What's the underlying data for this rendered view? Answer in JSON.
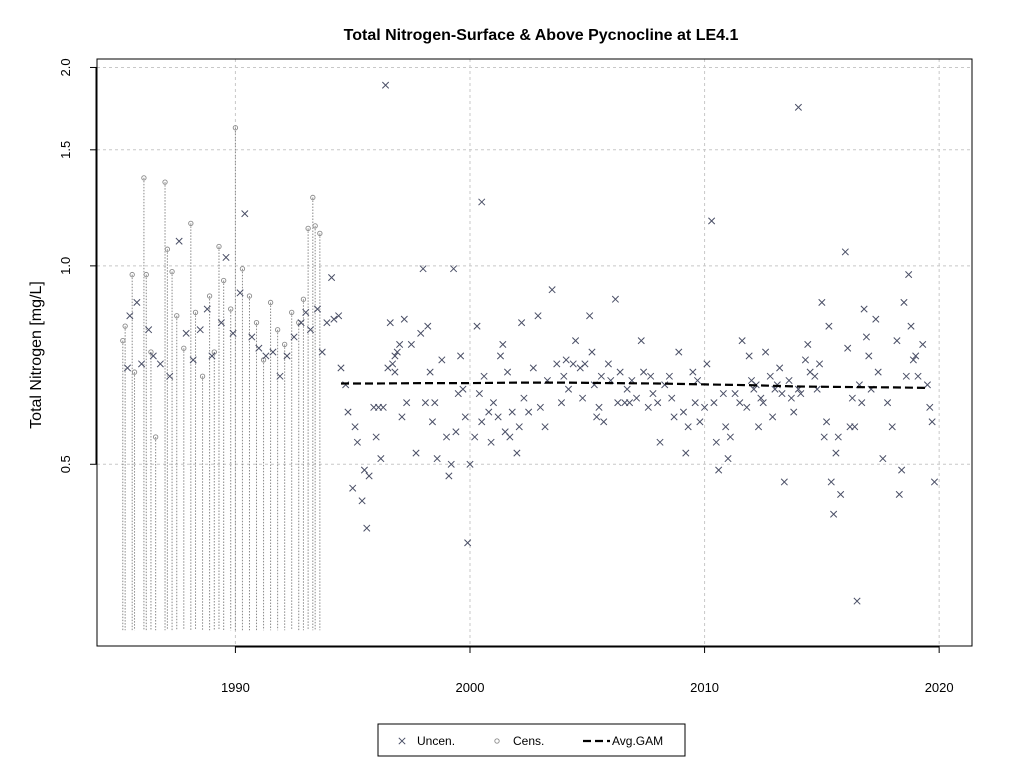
{
  "chart_data": {
    "type": "scatter",
    "title": "Total Nitrogen-Surface & Above Pycnocline at LE4.1",
    "xlabel": "",
    "ylabel": "Total Nitrogen [mg/L]",
    "y_scale": "log",
    "xlim": [
      1984.1,
      2021.4
    ],
    "ylim": [
      0.265,
      2.06
    ],
    "x_ticks": [
      1990,
      2000,
      2010,
      2020
    ],
    "y_ticks": [
      0.5,
      1.0,
      1.5,
      2.0
    ],
    "x_tick_labels": [
      "1990",
      "2000",
      "2010",
      "2020"
    ],
    "y_tick_labels": [
      "0.5",
      "1.0",
      "1.5",
      "2.0"
    ],
    "grid": true,
    "legend_position": "bottom",
    "legend": [
      {
        "label": "Uncen.",
        "symbol": "x"
      },
      {
        "label": "Cens.",
        "symbol": "circle"
      },
      {
        "label": "Avg.GAM",
        "symbol": "dashed-line"
      }
    ],
    "colors": {
      "uncensored": "#4a4f66",
      "censored": "#8a8a8a",
      "gam": "#000000",
      "grid": "#c8c8c8"
    },
    "censored_lower": 0.28,
    "series": [
      {
        "name": "Cens.",
        "points": [
          [
            1985.2,
            0.77
          ],
          [
            1985.3,
            0.81
          ],
          [
            1985.6,
            0.97
          ],
          [
            1985.7,
            0.69
          ],
          [
            1986.1,
            1.36
          ],
          [
            1986.2,
            0.97
          ],
          [
            1986.4,
            0.74
          ],
          [
            1986.6,
            0.55
          ],
          [
            1987.0,
            1.34
          ],
          [
            1987.1,
            1.06
          ],
          [
            1987.3,
            0.98
          ],
          [
            1987.5,
            0.84
          ],
          [
            1987.8,
            0.75
          ],
          [
            1988.1,
            1.16
          ],
          [
            1988.3,
            0.85
          ],
          [
            1988.6,
            0.68
          ],
          [
            1988.9,
            0.9
          ],
          [
            1989.1,
            0.74
          ],
          [
            1989.3,
            1.07
          ],
          [
            1989.5,
            0.95
          ],
          [
            1989.8,
            0.86
          ],
          [
            1990.0,
            1.62
          ],
          [
            1990.3,
            0.99
          ],
          [
            1990.6,
            0.9
          ],
          [
            1990.9,
            0.82
          ],
          [
            1991.2,
            0.72
          ],
          [
            1991.5,
            0.88
          ],
          [
            1991.8,
            0.8
          ],
          [
            1992.1,
            0.76
          ],
          [
            1992.4,
            0.85
          ],
          [
            1992.7,
            0.82
          ],
          [
            1992.9,
            0.89
          ],
          [
            1993.1,
            1.14
          ],
          [
            1993.3,
            1.27
          ],
          [
            1993.4,
            1.15
          ],
          [
            1993.6,
            1.12
          ]
        ]
      },
      {
        "name": "Uncen.",
        "points": [
          [
            1985.4,
            0.7
          ],
          [
            1985.5,
            0.84
          ],
          [
            1985.8,
            0.88
          ],
          [
            1986.0,
            0.71
          ],
          [
            1986.3,
            0.8
          ],
          [
            1986.5,
            0.73
          ],
          [
            1986.8,
            0.71
          ],
          [
            1987.2,
            0.68
          ],
          [
            1987.6,
            1.09
          ],
          [
            1987.9,
            0.79
          ],
          [
            1988.2,
            0.72
          ],
          [
            1988.5,
            0.8
          ],
          [
            1988.8,
            0.86
          ],
          [
            1989.0,
            0.73
          ],
          [
            1989.4,
            0.82
          ],
          [
            1989.6,
            1.03
          ],
          [
            1989.9,
            0.79
          ],
          [
            1990.2,
            0.91
          ],
          [
            1990.4,
            1.2
          ],
          [
            1990.7,
            0.78
          ],
          [
            1991.0,
            0.75
          ],
          [
            1991.3,
            0.73
          ],
          [
            1991.6,
            0.74
          ],
          [
            1991.9,
            0.68
          ],
          [
            1992.2,
            0.73
          ],
          [
            1992.5,
            0.78
          ],
          [
            1992.8,
            0.82
          ],
          [
            1993.0,
            0.85
          ],
          [
            1993.2,
            0.8
          ],
          [
            1993.5,
            0.86
          ],
          [
            1993.7,
            0.74
          ],
          [
            1993.9,
            0.82
          ],
          [
            1994.1,
            0.96
          ],
          [
            1994.2,
            0.83
          ],
          [
            1994.4,
            0.84
          ],
          [
            1994.5,
            0.7
          ],
          [
            1994.7,
            0.66
          ],
          [
            1994.8,
            0.6
          ],
          [
            1995.0,
            0.46
          ],
          [
            1995.1,
            0.57
          ],
          [
            1995.2,
            0.54
          ],
          [
            1995.4,
            0.44
          ],
          [
            1995.5,
            0.49
          ],
          [
            1995.6,
            0.4
          ],
          [
            1995.7,
            0.48
          ],
          [
            1995.9,
            0.61
          ],
          [
            1996.0,
            0.55
          ],
          [
            1996.1,
            0.61
          ],
          [
            1996.2,
            0.51
          ],
          [
            1996.3,
            0.61
          ],
          [
            1996.4,
            1.88
          ],
          [
            1996.5,
            0.7
          ],
          [
            1996.6,
            0.82
          ],
          [
            1996.7,
            0.71
          ],
          [
            1996.8,
            0.69
          ],
          [
            1996.9,
            0.74
          ],
          [
            1997.0,
            0.76
          ],
          [
            1997.1,
            0.59
          ],
          [
            1997.2,
            0.83
          ],
          [
            1997.3,
            0.62
          ],
          [
            1997.5,
            0.76
          ],
          [
            1997.7,
            0.52
          ],
          [
            1997.9,
            0.79
          ],
          [
            1998.0,
            0.99
          ],
          [
            1998.1,
            0.62
          ],
          [
            1998.2,
            0.81
          ],
          [
            1998.3,
            0.69
          ],
          [
            1998.4,
            0.58
          ],
          [
            1998.5,
            0.62
          ],
          [
            1998.6,
            0.51
          ],
          [
            1998.8,
            0.72
          ],
          [
            1999.0,
            0.55
          ],
          [
            1999.1,
            0.48
          ],
          [
            1999.2,
            0.5
          ],
          [
            1999.3,
            0.99
          ],
          [
            1999.4,
            0.56
          ],
          [
            1999.5,
            0.64
          ],
          [
            1999.6,
            0.73
          ],
          [
            1999.7,
            0.65
          ],
          [
            1999.8,
            0.59
          ],
          [
            1999.9,
            0.38
          ],
          [
            2000.0,
            0.5
          ],
          [
            2000.2,
            0.55
          ],
          [
            2000.3,
            0.81
          ],
          [
            2000.4,
            0.64
          ],
          [
            2000.5,
            0.58
          ],
          [
            2000.6,
            0.68
          ],
          [
            2000.8,
            0.6
          ],
          [
            2000.9,
            0.54
          ],
          [
            2001.0,
            0.62
          ],
          [
            2001.2,
            0.59
          ],
          [
            2001.3,
            0.73
          ],
          [
            2001.4,
            0.76
          ],
          [
            2001.5,
            0.56
          ],
          [
            2001.6,
            0.69
          ],
          [
            2001.7,
            0.55
          ],
          [
            2001.8,
            0.6
          ],
          [
            2002.0,
            0.52
          ],
          [
            2002.1,
            0.57
          ],
          [
            2002.2,
            0.82
          ],
          [
            2002.3,
            0.63
          ],
          [
            2002.5,
            0.6
          ],
          [
            2002.7,
            0.7
          ],
          [
            2002.9,
            0.84
          ],
          [
            2003.0,
            0.61
          ],
          [
            2003.2,
            0.57
          ],
          [
            2003.3,
            0.67
          ],
          [
            2003.5,
            0.92
          ],
          [
            2003.7,
            0.71
          ],
          [
            2003.9,
            0.62
          ],
          [
            2004.0,
            0.68
          ],
          [
            2004.1,
            0.72
          ],
          [
            2004.2,
            0.65
          ],
          [
            2004.4,
            0.71
          ],
          [
            2004.5,
            0.77
          ],
          [
            2004.7,
            0.7
          ],
          [
            2004.8,
            0.63
          ],
          [
            2004.9,
            0.71
          ],
          [
            2005.1,
            0.84
          ],
          [
            2005.2,
            0.74
          ],
          [
            2005.3,
            0.66
          ],
          [
            2005.4,
            0.59
          ],
          [
            2005.5,
            0.61
          ],
          [
            2005.6,
            0.68
          ],
          [
            2005.7,
            0.58
          ],
          [
            2005.9,
            0.71
          ],
          [
            2006.0,
            0.67
          ],
          [
            2006.2,
            0.89
          ],
          [
            2006.3,
            0.62
          ],
          [
            2006.4,
            0.69
          ],
          [
            2006.6,
            0.62
          ],
          [
            2006.7,
            0.65
          ],
          [
            2006.8,
            0.62
          ],
          [
            2006.9,
            0.67
          ],
          [
            2007.1,
            0.63
          ],
          [
            2007.3,
            0.77
          ],
          [
            2007.4,
            0.69
          ],
          [
            2007.6,
            0.61
          ],
          [
            2007.7,
            0.68
          ],
          [
            2007.8,
            0.64
          ],
          [
            2008.0,
            0.62
          ],
          [
            2008.1,
            0.54
          ],
          [
            2008.3,
            0.66
          ],
          [
            2008.5,
            0.68
          ],
          [
            2008.6,
            0.63
          ],
          [
            2008.7,
            0.59
          ],
          [
            2008.9,
            0.74
          ],
          [
            2009.1,
            0.6
          ],
          [
            2009.2,
            0.52
          ],
          [
            2009.3,
            0.57
          ],
          [
            2009.5,
            0.69
          ],
          [
            2009.6,
            0.62
          ],
          [
            2009.7,
            0.67
          ],
          [
            2009.8,
            0.58
          ],
          [
            2010.0,
            0.61
          ],
          [
            2010.1,
            0.71
          ],
          [
            2010.3,
            1.17
          ],
          [
            2010.4,
            0.62
          ],
          [
            2010.5,
            0.54
          ],
          [
            2010.6,
            0.49
          ],
          [
            2010.8,
            0.64
          ],
          [
            2010.9,
            0.57
          ],
          [
            2011.0,
            0.51
          ],
          [
            2011.1,
            0.55
          ],
          [
            2011.3,
            0.64
          ],
          [
            2011.5,
            0.62
          ],
          [
            2011.6,
            0.77
          ],
          [
            2011.8,
            0.61
          ],
          [
            2011.9,
            0.73
          ],
          [
            2012.0,
            0.67
          ],
          [
            2012.1,
            0.65
          ],
          [
            2012.2,
            0.66
          ],
          [
            2012.3,
            0.57
          ],
          [
            2012.4,
            0.63
          ],
          [
            2012.5,
            0.62
          ],
          [
            2012.6,
            0.74
          ],
          [
            2012.8,
            0.68
          ],
          [
            2012.9,
            0.59
          ],
          [
            2013.0,
            0.65
          ],
          [
            2013.1,
            0.66
          ],
          [
            2013.2,
            0.7
          ],
          [
            2013.3,
            0.64
          ],
          [
            2013.4,
            0.47
          ],
          [
            2013.6,
            0.67
          ],
          [
            2013.7,
            0.63
          ],
          [
            2013.8,
            0.6
          ],
          [
            2014.0,
            0.65
          ],
          [
            2014.1,
            0.64
          ],
          [
            2014.3,
            0.72
          ],
          [
            2014.4,
            0.76
          ],
          [
            2014.5,
            0.69
          ],
          [
            2014.7,
            0.68
          ],
          [
            2014.8,
            0.65
          ],
          [
            2014.9,
            0.71
          ],
          [
            2015.0,
            0.88
          ],
          [
            2015.1,
            0.55
          ],
          [
            2015.2,
            0.58
          ],
          [
            2015.3,
            0.81
          ],
          [
            2015.4,
            0.47
          ],
          [
            2015.5,
            0.42
          ],
          [
            2015.6,
            0.52
          ],
          [
            2015.7,
            0.55
          ],
          [
            2015.8,
            0.45
          ],
          [
            2016.0,
            1.05
          ],
          [
            2016.1,
            0.75
          ],
          [
            2016.2,
            0.57
          ],
          [
            2016.3,
            0.63
          ],
          [
            2016.4,
            0.57
          ],
          [
            2016.5,
            0.31
          ],
          [
            2016.6,
            0.66
          ],
          [
            2016.7,
            0.62
          ],
          [
            2016.8,
            0.86
          ],
          [
            2016.9,
            0.78
          ],
          [
            2017.0,
            0.73
          ],
          [
            2017.1,
            0.65
          ],
          [
            2017.3,
            0.83
          ],
          [
            2017.4,
            0.69
          ],
          [
            2017.6,
            0.51
          ],
          [
            2017.8,
            0.62
          ],
          [
            2018.0,
            0.57
          ],
          [
            2018.2,
            0.77
          ],
          [
            2018.3,
            0.45
          ],
          [
            2018.4,
            0.49
          ],
          [
            2018.5,
            0.88
          ],
          [
            2018.6,
            0.68
          ],
          [
            2018.7,
            0.97
          ],
          [
            2018.8,
            0.81
          ],
          [
            2018.9,
            0.72
          ],
          [
            2019.0,
            0.73
          ],
          [
            2019.1,
            0.68
          ],
          [
            2019.3,
            0.76
          ],
          [
            2019.5,
            0.66
          ],
          [
            2019.6,
            0.61
          ],
          [
            2019.7,
            0.58
          ],
          [
            2019.8,
            0.47
          ],
          [
            2014.0,
            1.74
          ],
          [
            2000.5,
            1.25
          ],
          [
            1996.8,
            0.73
          ]
        ]
      },
      {
        "name": "Avg.GAM",
        "points": [
          [
            1994.5,
            0.663
          ],
          [
            1996,
            0.663
          ],
          [
            1998,
            0.664
          ],
          [
            2000,
            0.664
          ],
          [
            2002,
            0.665
          ],
          [
            2004,
            0.665
          ],
          [
            2006,
            0.664
          ],
          [
            2008,
            0.663
          ],
          [
            2010,
            0.661
          ],
          [
            2012,
            0.659
          ],
          [
            2014,
            0.656
          ],
          [
            2016,
            0.655
          ],
          [
            2018,
            0.654
          ],
          [
            2019.5,
            0.653
          ]
        ]
      }
    ]
  }
}
